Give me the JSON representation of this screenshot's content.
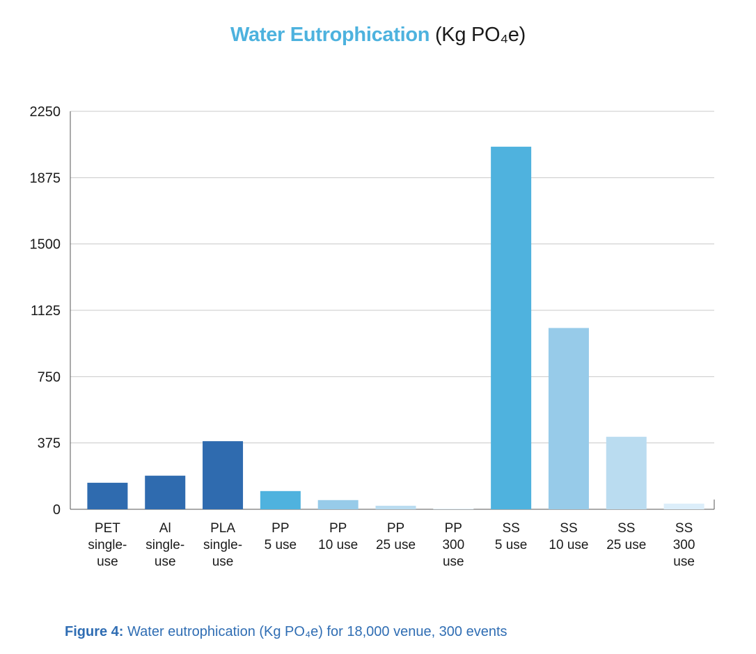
{
  "title": {
    "highlight": "Water Eutrophication",
    "rest": "(Kg PO₄e)"
  },
  "caption": {
    "label": "Figure 4:",
    "text": "Water eutrophication (Kg PO₄e) for 18,000 venue, 300 events"
  },
  "colors": {
    "dark": "#2f6baf",
    "mid": "#4fb2de",
    "light": "#97cbe9",
    "lighter": "#badcf0",
    "lightest": "#dceefa",
    "grid": "#c8c8c8"
  },
  "chart_data": {
    "type": "bar",
    "title": "Water Eutrophication (Kg PO₄e)",
    "xlabel": "",
    "ylabel": "",
    "ylim": [
      0,
      2250
    ],
    "yticks": [
      0,
      375,
      750,
      1125,
      1500,
      1875,
      2250
    ],
    "ytick_labels": [
      "0",
      "375",
      "750",
      "1125",
      "1500",
      "1875",
      "2250"
    ],
    "grid": true,
    "categories": [
      [
        "PET",
        "single-",
        "use"
      ],
      [
        "Al",
        "single-",
        "use"
      ],
      [
        "PLA",
        "single-",
        "use"
      ],
      [
        "PP",
        "5 use"
      ],
      [
        "PP",
        "10 use"
      ],
      [
        "PP",
        "25 use"
      ],
      [
        "PP",
        "300",
        "use"
      ],
      [
        "SS",
        "5 use"
      ],
      [
        "SS",
        "10 use"
      ],
      [
        "SS",
        "25 use"
      ],
      [
        "SS",
        "300",
        "use"
      ]
    ],
    "values": [
      150,
      190,
      385,
      103,
      52,
      20,
      3,
      2050,
      1025,
      410,
      32
    ],
    "bar_colors": [
      "#2f6baf",
      "#2f6baf",
      "#2f6baf",
      "#4fb2de",
      "#97cbe9",
      "#badcf0",
      "#dceefa",
      "#4fb2de",
      "#97cbe9",
      "#badcf0",
      "#dceefa"
    ]
  }
}
